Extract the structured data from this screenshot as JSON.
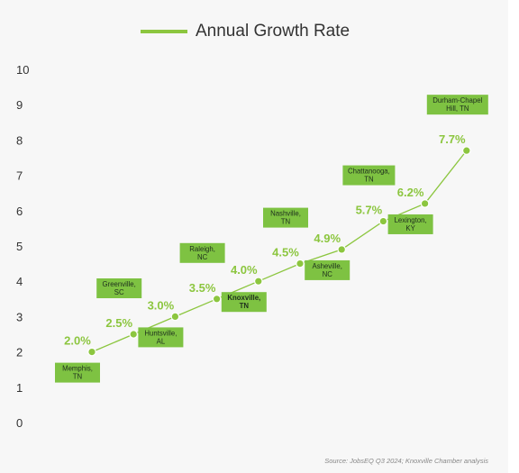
{
  "legend": {
    "label": "Annual Growth Rate"
  },
  "source": "Source: JobsEQ Q3 2024; Knoxville Chamber analysis",
  "colors": {
    "series": "#8cc63f",
    "label_box": "#7ec242",
    "label_text": "#1d2e1d",
    "value_text": "#8cc63f",
    "axis_text": "#333333",
    "panel": "#f7f7f7"
  },
  "chart_data": {
    "type": "line",
    "series": [
      {
        "name": "Annual Growth Rate",
        "values": [
          2.0,
          2.5,
          3.0,
          3.5,
          4.0,
          4.5,
          4.9,
          5.7,
          6.2,
          7.7
        ]
      }
    ],
    "categories": [
      "Memphis, TN",
      "Greenville, SC",
      "Huntsville, AL",
      "Raleigh, NC",
      "Knoxville, TN",
      "Nashville, TN",
      "Asheville, NC",
      "Chattanooga, TN",
      "Lexington, KY",
      "Durham-Chapel Hill, TN"
    ],
    "points": [
      {
        "value": 2.0,
        "value_label": "2.0%",
        "city": [
          "Memphis,",
          "TN"
        ],
        "label_pos": "below",
        "highlight": false
      },
      {
        "value": 2.5,
        "value_label": "2.5%",
        "city": [
          "Greenville,",
          "SC"
        ],
        "label_pos": "above",
        "highlight": false
      },
      {
        "value": 3.0,
        "value_label": "3.0%",
        "city": [
          "Huntsville,",
          "AL"
        ],
        "label_pos": "below",
        "highlight": false
      },
      {
        "value": 3.5,
        "value_label": "3.5%",
        "city": [
          "Raleigh,",
          "NC"
        ],
        "label_pos": "above",
        "highlight": false
      },
      {
        "value": 4.0,
        "value_label": "4.0%",
        "city": [
          "Knoxville,",
          "TN"
        ],
        "label_pos": "below",
        "highlight": true
      },
      {
        "value": 4.5,
        "value_label": "4.5%",
        "city": [
          "Nashville,",
          "TN"
        ],
        "label_pos": "above",
        "highlight": false
      },
      {
        "value": 4.9,
        "value_label": "4.9%",
        "city": [
          "Asheville,",
          "NC"
        ],
        "label_pos": "below",
        "highlight": false
      },
      {
        "value": 5.7,
        "value_label": "5.7%",
        "city": [
          "Chattanooga,",
          "TN"
        ],
        "label_pos": "above",
        "highlight": false
      },
      {
        "value": 6.2,
        "value_label": "6.2%",
        "city": [
          "Lexington,",
          "KY"
        ],
        "label_pos": "below",
        "highlight": false
      },
      {
        "value": 7.7,
        "value_label": "7.7%",
        "city": [
          "Durham-Chapel",
          "Hill, TN"
        ],
        "label_pos": "above",
        "highlight": false
      }
    ],
    "yticks": [
      "0",
      "1",
      "2",
      "3",
      "4",
      "5",
      "6",
      "7",
      "8",
      "9",
      "10"
    ],
    "ylim": [
      0,
      10
    ],
    "grid": false,
    "legend_position": "top-center",
    "title": "",
    "xlabel": "",
    "ylabel": ""
  }
}
